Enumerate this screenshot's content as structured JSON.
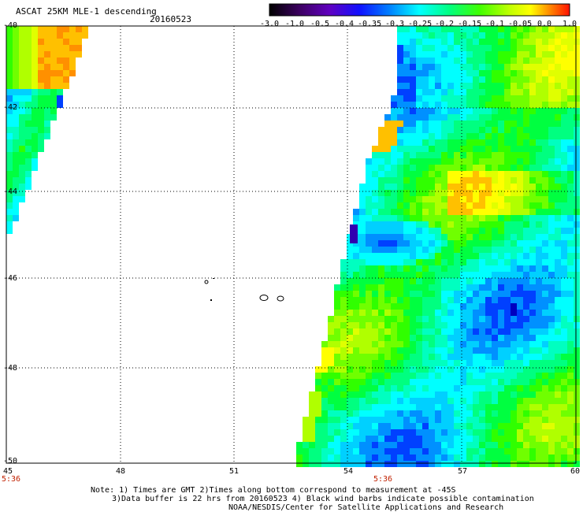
{
  "header": {
    "title": "ASCAT 25KM MLE-1 descending",
    "date": "20160523"
  },
  "colorbar": {
    "labels": [
      "-3.0",
      "-1.0",
      "-0.5",
      "-0.4",
      "-0.35",
      "-0.3",
      "-0.25",
      "-0.2",
      "-0.15",
      "-0.1",
      "-0.05",
      "0.0",
      "1.0"
    ],
    "colors": [
      "#1a0020",
      "#4b0080",
      "#6a00d0",
      "#2020ff",
      "#0060ff",
      "#00b0ff",
      "#00ffff",
      "#00ff90",
      "#30ff00",
      "#a0ff00",
      "#ffff00",
      "#ff9000",
      "#ff2000"
    ]
  },
  "map": {
    "lat_labels": [
      "-40",
      "-42",
      "-44",
      "-46",
      "-48",
      "-50"
    ],
    "lon_labels": [
      "45",
      "48",
      "51",
      "54",
      "57",
      "60"
    ],
    "time_labels": [
      "5:36",
      "5:36"
    ],
    "ocean_color": "#00ffcc",
    "land": "Crozet Islands"
  },
  "footer": {
    "line1": "Note: 1) Times are GMT 2)Times along bottom correspond to measurement at -45S",
    "line2": "3)Data buffer is 22 hrs from 20160523 4) Black wind barbs indicate possible contamination",
    "line3": "NOAA/NESDIS/Center for Satellite Applications and Research"
  }
}
